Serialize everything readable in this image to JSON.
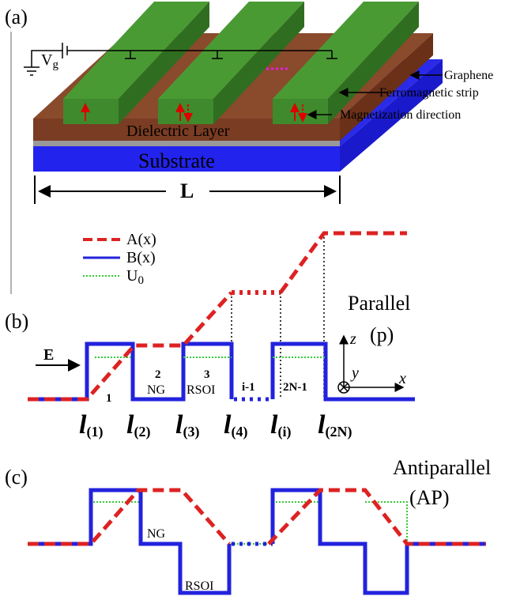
{
  "panel_a": {
    "label": "(a)",
    "gate": "V",
    "gate_sub": "g",
    "graphene": "Graphene",
    "strip": "Ferromagnetic strip",
    "magnetization": "Magnetization direction",
    "dielectric": "Dielectric Layer",
    "substrate": "Substrate",
    "length": "L"
  },
  "panel_b": {
    "label": "(b)",
    "legend": [
      "A(x)",
      "B(x)",
      "U"
    ],
    "legend_sub": "0",
    "mode": "Parallel",
    "mode_short": "(p)",
    "field": "E",
    "regions": [
      "1",
      "2",
      "NG",
      "3",
      "RSOI",
      "i-1",
      "2N-1"
    ],
    "boundaries": [
      "(1)",
      "(2)",
      "(3)",
      "(4)",
      "(i)",
      "(2N)"
    ],
    "boundary_symbol": "l",
    "axes": [
      "z",
      "y",
      "x"
    ]
  },
  "panel_c": {
    "label": "(c)",
    "mode": "Antiparallel",
    "mode_short": "(AP)",
    "regions": [
      "NG",
      "RSOI"
    ]
  }
}
